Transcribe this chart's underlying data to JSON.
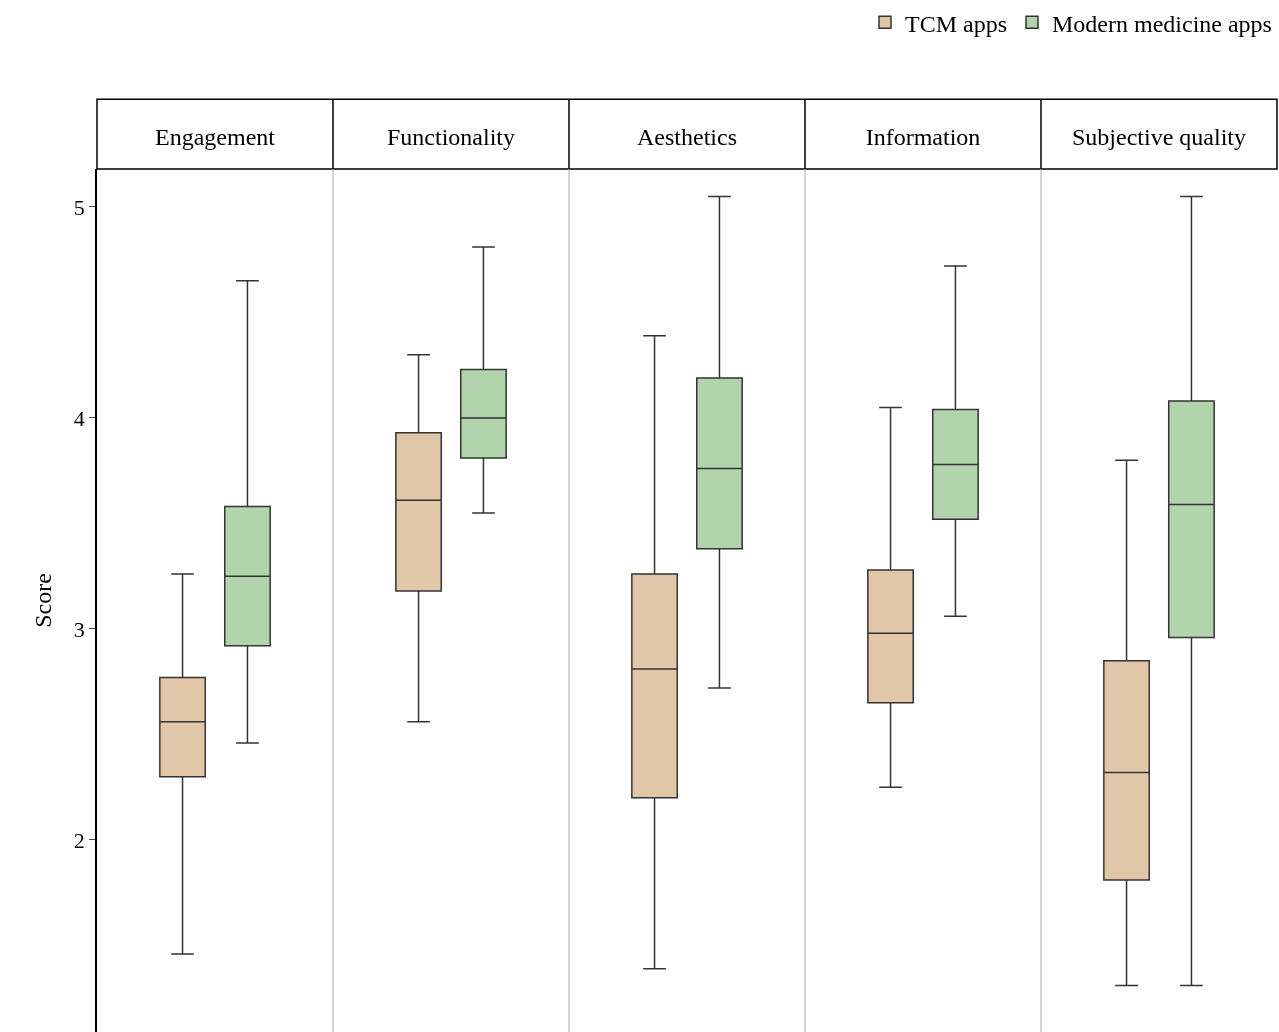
{
  "chart_data": {
    "type": "box",
    "ylabel": "Score",
    "categories": [
      "Engagement",
      "Functionality",
      "Aesthetics",
      "Information",
      "Subjective quality"
    ],
    "ylim": [
      1.09,
      5.18
    ],
    "yticks": [
      2,
      3,
      4,
      5
    ],
    "grid": false,
    "legend": "top right",
    "series": [
      {
        "name": "TCM apps",
        "color": "#e2c6a8",
        "boxes": [
          {
            "low": 1.46,
            "q1": 2.3,
            "median": 2.56,
            "q3": 2.77,
            "high": 3.26
          },
          {
            "low": 2.56,
            "q1": 3.18,
            "median": 3.61,
            "q3": 3.93,
            "high": 4.3
          },
          {
            "low": 1.39,
            "q1": 2.2,
            "median": 2.81,
            "q3": 3.26,
            "high": 4.39
          },
          {
            "low": 2.25,
            "q1": 2.65,
            "median": 2.98,
            "q3": 3.28,
            "high": 4.05
          },
          {
            "low": 1.31,
            "q1": 1.81,
            "median": 2.32,
            "q3": 2.85,
            "high": 3.8
          }
        ]
      },
      {
        "name": "Modern medicine apps",
        "color": "#b1d4ad",
        "boxes": [
          {
            "low": 2.46,
            "q1": 2.92,
            "median": 3.25,
            "q3": 3.58,
            "high": 4.65
          },
          {
            "low": 3.55,
            "q1": 3.81,
            "median": 4.0,
            "q3": 4.23,
            "high": 4.81
          },
          {
            "low": 2.72,
            "q1": 3.38,
            "median": 3.76,
            "q3": 4.19,
            "high": 5.05
          },
          {
            "low": 3.06,
            "q1": 3.52,
            "median": 3.78,
            "q3": 4.04,
            "high": 4.72
          },
          {
            "low": 1.31,
            "q1": 2.96,
            "median": 3.59,
            "q3": 4.08,
            "high": 5.05
          }
        ]
      }
    ]
  }
}
